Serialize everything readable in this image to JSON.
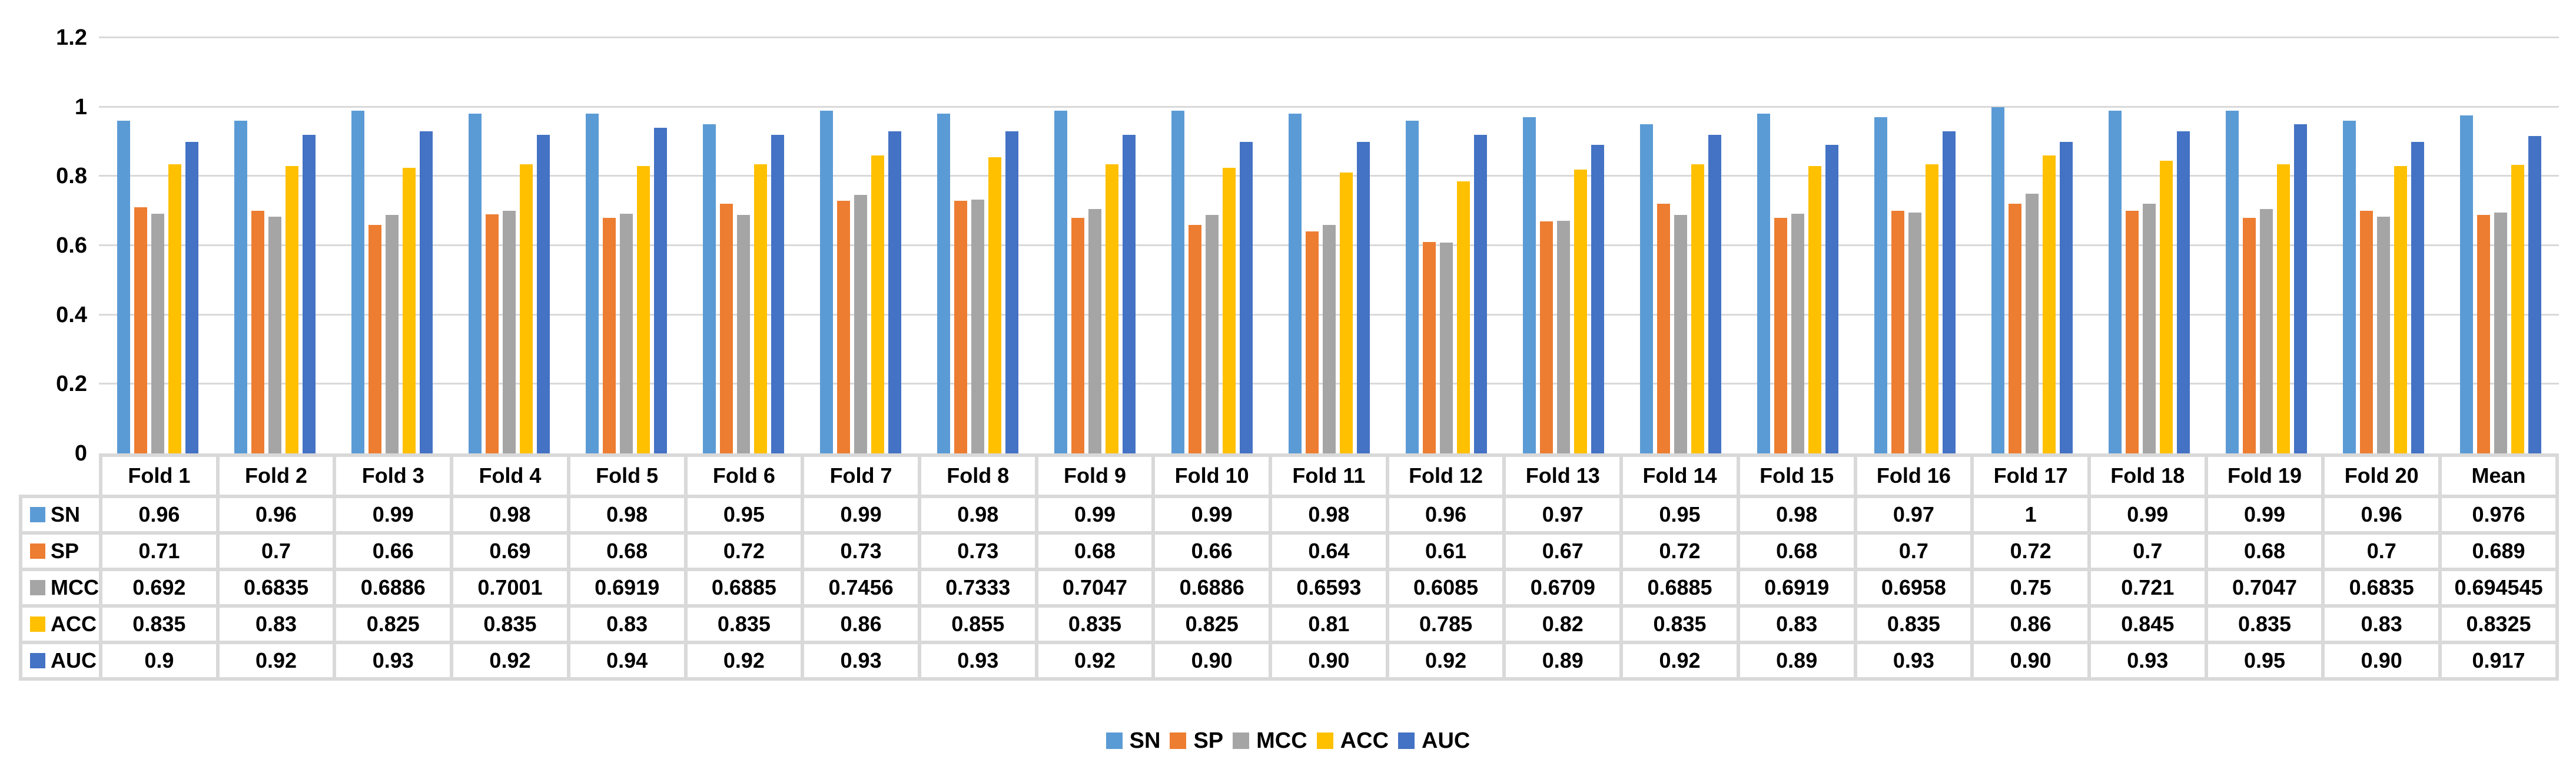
{
  "page": {
    "background": "#ffffff",
    "text_color": "#000000",
    "gridline_color": "#d9d9d9",
    "table_border_color": "#d9d9d9"
  },
  "chart_data": {
    "type": "bar",
    "title": "",
    "xlabel": "",
    "ylabel": "",
    "ylim": [
      0,
      1.2
    ],
    "ytick_values": [
      0,
      0.2,
      0.4,
      0.6,
      0.8,
      1,
      1.2
    ],
    "ytick_labels": [
      "0",
      "0.2",
      "0.4",
      "0.6",
      "0.8",
      "1",
      "1.2"
    ],
    "grid": true,
    "legend_position": "bottom",
    "has_data_table": true,
    "categories": [
      "Fold 1",
      "Fold 2",
      "Fold 3",
      "Fold 4",
      "Fold 5",
      "Fold 6",
      "Fold 7",
      "Fold 8",
      "Fold 9",
      "Fold 10",
      "Fold 11",
      "Fold 12",
      "Fold 13",
      "Fold 14",
      "Fold 15",
      "Fold 16",
      "Fold 17",
      "Fold 18",
      "Fold 19",
      "Fold 20",
      "Mean"
    ],
    "series": [
      {
        "name": "SN",
        "color": "#5B9BD5",
        "values": [
          0.96,
          0.96,
          0.99,
          0.98,
          0.98,
          0.95,
          0.99,
          0.98,
          0.99,
          0.99,
          0.98,
          0.96,
          0.97,
          0.95,
          0.98,
          0.97,
          1,
          0.99,
          0.99,
          0.96,
          0.976
        ],
        "display": [
          "0.96",
          "0.96",
          "0.99",
          "0.98",
          "0.98",
          "0.95",
          "0.99",
          "0.98",
          "0.99",
          "0.99",
          "0.98",
          "0.96",
          "0.97",
          "0.95",
          "0.98",
          "0.97",
          "1",
          "0.99",
          "0.99",
          "0.96",
          "0.976"
        ]
      },
      {
        "name": "SP",
        "color": "#ED7D31",
        "values": [
          0.71,
          0.7,
          0.66,
          0.69,
          0.68,
          0.72,
          0.73,
          0.73,
          0.68,
          0.66,
          0.64,
          0.61,
          0.67,
          0.72,
          0.68,
          0.7,
          0.72,
          0.7,
          0.68,
          0.7,
          0.689
        ],
        "display": [
          "0.71",
          "0.7",
          "0.66",
          "0.69",
          "0.68",
          "0.72",
          "0.73",
          "0.73",
          "0.68",
          "0.66",
          "0.64",
          "0.61",
          "0.67",
          "0.72",
          "0.68",
          "0.7",
          "0.72",
          "0.7",
          "0.68",
          "0.7",
          "0.689"
        ]
      },
      {
        "name": "MCC",
        "color": "#A5A5A5",
        "values": [
          0.692,
          0.6835,
          0.6886,
          0.7001,
          0.6919,
          0.6885,
          0.7456,
          0.7333,
          0.7047,
          0.6886,
          0.6593,
          0.6085,
          0.6709,
          0.6885,
          0.6919,
          0.6958,
          0.75,
          0.721,
          0.7047,
          0.6835,
          0.694545
        ],
        "display": [
          "0.692",
          "0.6835",
          "0.6886",
          "0.7001",
          "0.6919",
          "0.6885",
          "0.7456",
          "0.7333",
          "0.7047",
          "0.6886",
          "0.6593",
          "0.6085",
          "0.6709",
          "0.6885",
          "0.6919",
          "0.6958",
          "0.75",
          "0.721",
          "0.7047",
          "0.6835",
          "0.694545"
        ]
      },
      {
        "name": "ACC",
        "color": "#FFC000",
        "values": [
          0.835,
          0.83,
          0.825,
          0.835,
          0.83,
          0.835,
          0.86,
          0.855,
          0.835,
          0.825,
          0.81,
          0.785,
          0.82,
          0.835,
          0.83,
          0.835,
          0.86,
          0.845,
          0.835,
          0.83,
          0.8325
        ],
        "display": [
          "0.835",
          "0.83",
          "0.825",
          "0.835",
          "0.83",
          "0.835",
          "0.86",
          "0.855",
          "0.835",
          "0.825",
          "0.81",
          "0.785",
          "0.82",
          "0.835",
          "0.83",
          "0.835",
          "0.86",
          "0.845",
          "0.835",
          "0.83",
          "0.8325"
        ]
      },
      {
        "name": "AUC",
        "color": "#4472C4",
        "values": [
          0.9,
          0.92,
          0.93,
          0.92,
          0.94,
          0.92,
          0.93,
          0.93,
          0.92,
          0.9,
          0.9,
          0.92,
          0.89,
          0.92,
          0.89,
          0.93,
          0.9,
          0.93,
          0.95,
          0.9,
          0.917
        ],
        "display": [
          "0.9",
          "0.92",
          "0.93",
          "0.92",
          "0.94",
          "0.92",
          "0.93",
          "0.93",
          "0.92",
          "0.90",
          "0.90",
          "0.92",
          "0.89",
          "0.92",
          "0.89",
          "0.93",
          "0.90",
          "0.93",
          "0.95",
          "0.90",
          "0.917"
        ]
      }
    ],
    "legend_items": [
      "SN",
      "SP",
      "MCC",
      "ACC",
      "AUC"
    ]
  }
}
